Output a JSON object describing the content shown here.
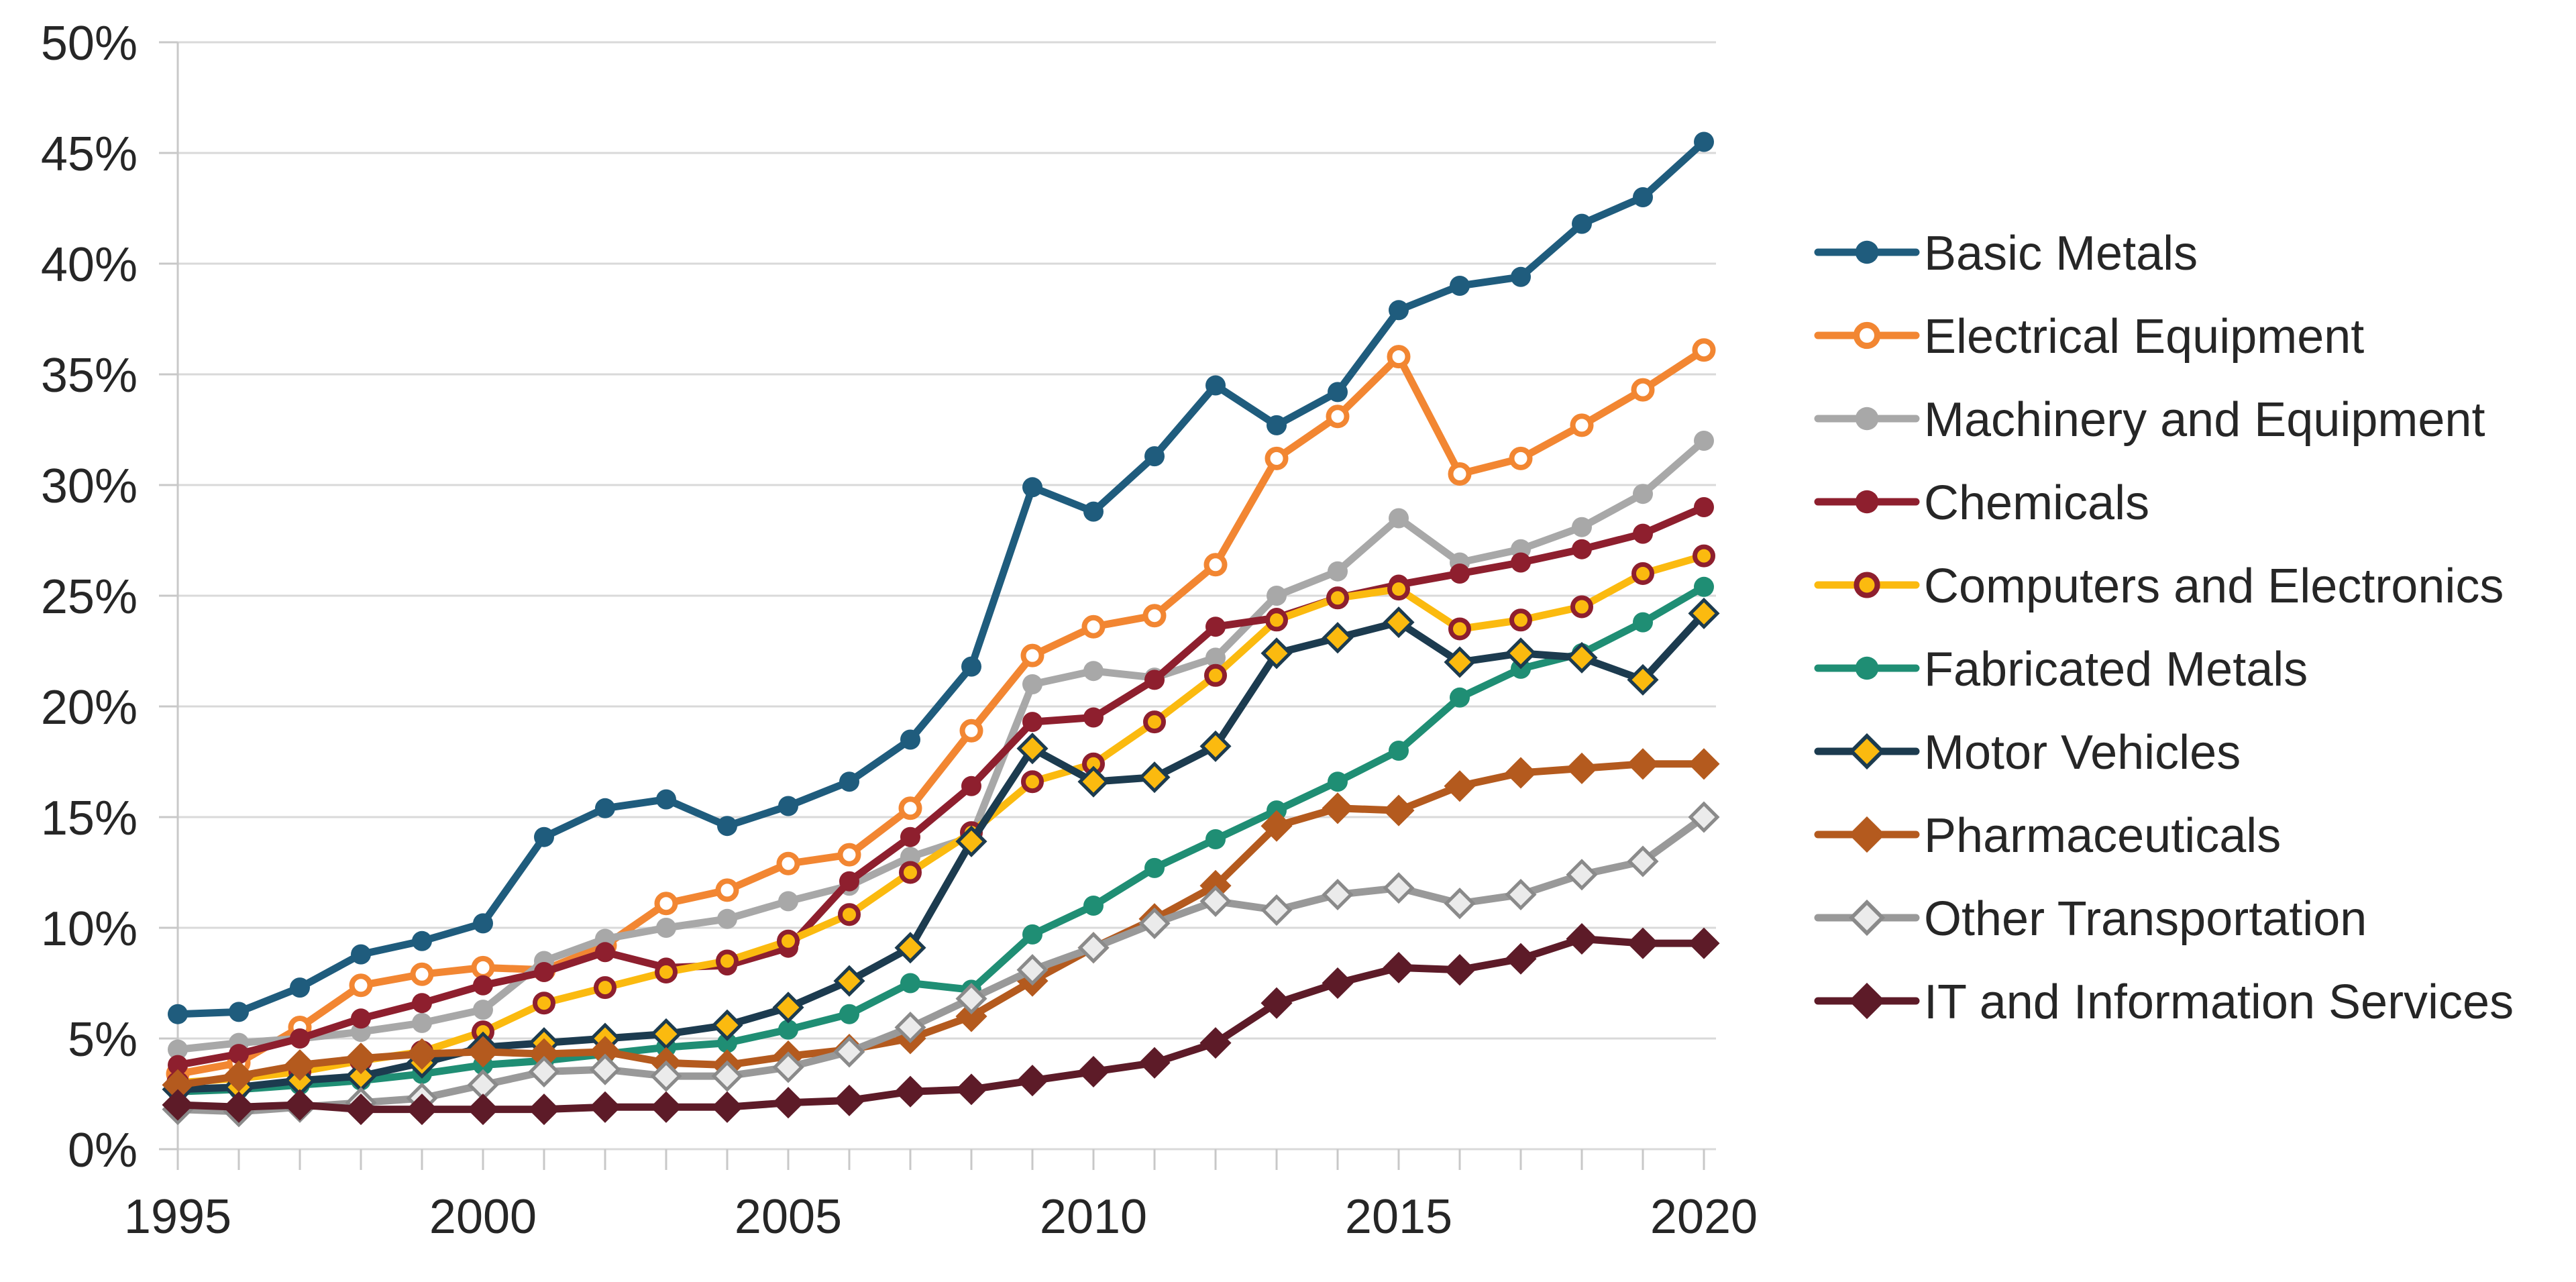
{
  "chart_data": {
    "type": "line",
    "title": "",
    "xlabel": "",
    "ylabel": "",
    "x": [
      1995,
      1996,
      1997,
      1998,
      1999,
      2000,
      2001,
      2002,
      2003,
      2004,
      2005,
      2006,
      2007,
      2008,
      2009,
      2010,
      2011,
      2012,
      2013,
      2014,
      2015,
      2016,
      2017,
      2018,
      2019,
      2020
    ],
    "x_tick_labels": [
      "1995",
      "2000",
      "2005",
      "2010",
      "2015",
      "2020"
    ],
    "x_tick_years": [
      1995,
      2000,
      2005,
      2010,
      2015,
      2020
    ],
    "y_tick_labels": [
      "0%",
      "5%",
      "10%",
      "15%",
      "20%",
      "25%",
      "30%",
      "35%",
      "40%",
      "45%",
      "50%"
    ],
    "y_tick_values": [
      0,
      5,
      10,
      15,
      20,
      25,
      30,
      35,
      40,
      45,
      50
    ],
    "ylim": [
      0,
      50
    ],
    "grid": "horizontal",
    "legend_position": "right",
    "series": [
      {
        "name": "Basic Metals",
        "slug": "basic-metals",
        "color": "#1F5C7D",
        "marker": "circle",
        "marker_fill": "#1F5C7D",
        "marker_stroke": "#1F5C7D",
        "values": [
          6.1,
          6.2,
          7.3,
          8.8,
          9.4,
          10.2,
          14.1,
          15.4,
          15.8,
          14.6,
          15.5,
          16.6,
          18.5,
          21.8,
          29.9,
          28.8,
          31.3,
          34.5,
          32.7,
          34.2,
          37.9,
          39.0,
          39.4,
          41.8,
          43.0,
          45.5
        ]
      },
      {
        "name": "Electrical Equipment",
        "slug": "electrical-equipment",
        "color": "#F28632",
        "marker": "open-circle",
        "marker_fill": "#FFFFFF",
        "marker_stroke": "#F28632",
        "values": [
          3.4,
          3.9,
          5.5,
          7.4,
          7.9,
          8.2,
          8.1,
          9.2,
          11.1,
          11.7,
          12.9,
          13.3,
          15.4,
          18.9,
          22.3,
          23.6,
          24.1,
          26.4,
          31.2,
          33.1,
          35.8,
          30.5,
          31.2,
          32.7,
          34.3,
          36.1
        ]
      },
      {
        "name": "Machinery and Equipment",
        "slug": "machinery-and-equipment",
        "color": "#A8A8A8",
        "marker": "circle",
        "marker_fill": "#A8A8A8",
        "marker_stroke": "#A8A8A8",
        "values": [
          4.5,
          4.8,
          5.0,
          5.3,
          5.7,
          6.3,
          8.5,
          9.5,
          10.0,
          10.4,
          11.2,
          11.9,
          13.2,
          14.1,
          21.0,
          21.6,
          21.3,
          22.2,
          25.0,
          26.1,
          28.5,
          26.5,
          27.1,
          28.1,
          29.6,
          32.0
        ]
      },
      {
        "name": "Chemicals",
        "slug": "chemicals",
        "color": "#8E1F2E",
        "marker": "circle",
        "marker_fill": "#8E1F2E",
        "marker_stroke": "#8E1F2E",
        "values": [
          3.8,
          4.3,
          5.0,
          5.9,
          6.6,
          7.4,
          8.0,
          8.9,
          8.2,
          8.3,
          9.1,
          12.1,
          14.1,
          16.4,
          19.3,
          19.5,
          21.2,
          23.6,
          24.0,
          24.9,
          25.5,
          26.0,
          26.5,
          27.1,
          27.8,
          29.0
        ]
      },
      {
        "name": "Computers and Electronics",
        "slug": "computers-and-electronics",
        "color": "#FBBA0F",
        "marker": "ring-circle",
        "marker_fill": "#FBBA0F",
        "marker_stroke": "#8E1F2E",
        "values": [
          3.0,
          3.2,
          3.5,
          4.0,
          4.4,
          5.3,
          6.6,
          7.3,
          8.0,
          8.5,
          9.4,
          10.6,
          12.5,
          14.3,
          16.6,
          17.4,
          19.3,
          21.4,
          23.9,
          24.9,
          25.3,
          23.5,
          23.9,
          24.5,
          26.0,
          26.8
        ]
      },
      {
        "name": "Fabricated Metals",
        "slug": "fabricated-metals",
        "color": "#1F8E74",
        "marker": "circle",
        "marker_fill": "#1F8E74",
        "marker_stroke": "#1F8E74",
        "values": [
          2.6,
          2.7,
          2.9,
          3.1,
          3.4,
          3.8,
          4.0,
          4.3,
          4.6,
          4.8,
          5.4,
          6.1,
          7.5,
          7.2,
          9.7,
          11.0,
          12.7,
          14.0,
          15.3,
          16.6,
          18.0,
          20.4,
          21.7,
          22.4,
          23.8,
          25.4
        ]
      },
      {
        "name": "Motor Vehicles",
        "slug": "motor-vehicles",
        "color": "#1C3B4F",
        "marker": "diamond",
        "marker_fill": "#FBBA0F",
        "marker_stroke": "#1C3B4F",
        "values": [
          2.7,
          2.8,
          3.1,
          3.3,
          3.9,
          4.6,
          4.8,
          5.0,
          5.2,
          5.6,
          6.4,
          7.6,
          9.1,
          13.9,
          18.1,
          16.6,
          16.8,
          18.2,
          22.4,
          23.1,
          23.8,
          22.0,
          22.4,
          22.2,
          21.2,
          24.2
        ]
      },
      {
        "name": "Pharmaceuticals",
        "slug": "pharmaceuticals",
        "color": "#B45A1E",
        "marker": "diamond",
        "marker_fill": "#B45A1E",
        "marker_stroke": "#B45A1E",
        "values": [
          2.9,
          3.3,
          3.8,
          4.1,
          4.3,
          4.4,
          4.3,
          4.4,
          3.9,
          3.8,
          4.2,
          4.5,
          5.0,
          6.0,
          7.6,
          9.1,
          10.4,
          11.9,
          14.6,
          15.4,
          15.3,
          16.4,
          17.0,
          17.2,
          17.4,
          17.4
        ]
      },
      {
        "name": "Other Transportation",
        "slug": "other-transportation",
        "color": "#999999",
        "marker": "diamond",
        "marker_fill": "#EBEBEB",
        "marker_stroke": "#8A8A8A",
        "values": [
          1.8,
          1.7,
          1.9,
          2.1,
          2.3,
          2.9,
          3.5,
          3.6,
          3.3,
          3.3,
          3.7,
          4.4,
          5.5,
          6.8,
          8.1,
          9.1,
          10.2,
          11.2,
          10.8,
          11.5,
          11.8,
          11.1,
          11.5,
          12.4,
          13.0,
          15.0
        ]
      },
      {
        "name": "IT and Information Services",
        "slug": "it-and-information-services",
        "color": "#5D1B28",
        "marker": "diamond",
        "marker_fill": "#5D1B28",
        "marker_stroke": "#5D1B28",
        "values": [
          2.0,
          1.9,
          2.0,
          1.8,
          1.8,
          1.8,
          1.8,
          1.9,
          1.9,
          1.9,
          2.1,
          2.2,
          2.6,
          2.7,
          3.1,
          3.5,
          3.9,
          4.8,
          6.6,
          7.5,
          8.2,
          8.1,
          8.6,
          9.5,
          9.3,
          9.3
        ]
      }
    ]
  },
  "colors": {
    "background": "#FFFFFF",
    "gridline": "#D9D9D9",
    "axis_line": "#C8C8C8",
    "tick": "#C8C8C8",
    "label_text": "#262626",
    "legend_text": "#262626"
  }
}
